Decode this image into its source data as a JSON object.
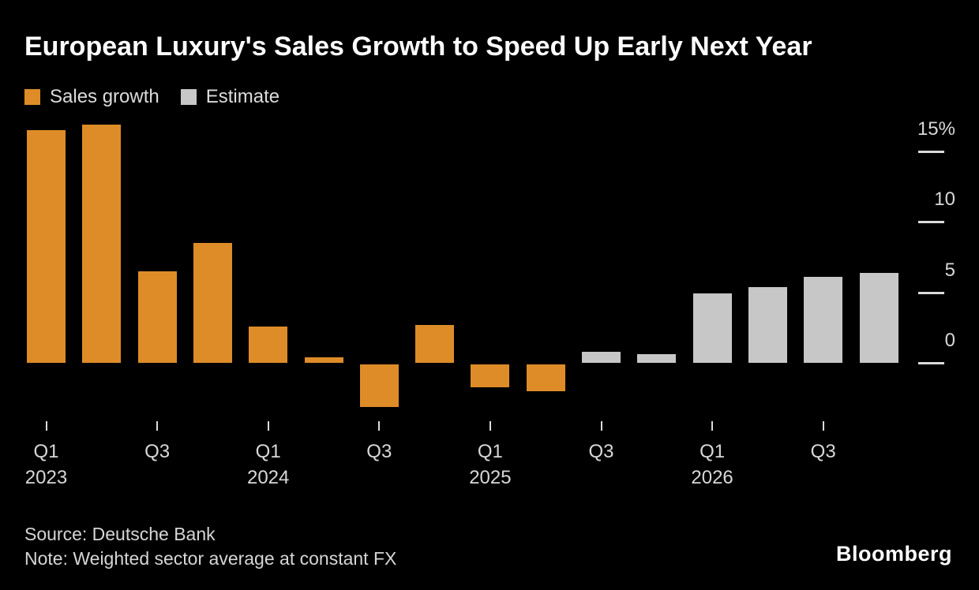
{
  "chart_data": {
    "type": "bar",
    "title": "European Luxury's Sales Growth to Speed Up Early Next Year",
    "categories": [
      "Q1 2023",
      "Q2 2023",
      "Q3 2023",
      "Q4 2023",
      "Q1 2024",
      "Q2 2024",
      "Q3 2024",
      "Q4 2024",
      "Q1 2025",
      "Q2 2025",
      "Q3 2025",
      "Q4 2025",
      "Q1 2026",
      "Q2 2026",
      "Q3 2026",
      "Q4 2026"
    ],
    "series": [
      {
        "name": "Sales growth",
        "color": "#DE8C28",
        "values": [
          16.5,
          16.9,
          6.5,
          8.5,
          2.6,
          0.4,
          -3.0,
          2.7,
          -1.6,
          -1.9,
          null,
          null,
          null,
          null,
          null,
          null
        ]
      },
      {
        "name": "Estimate",
        "color": "#C7C7C7",
        "values": [
          null,
          null,
          null,
          null,
          null,
          null,
          null,
          null,
          null,
          null,
          0.8,
          0.6,
          4.9,
          5.4,
          6.1,
          6.4
        ]
      }
    ],
    "xlabel": "",
    "ylabel": "%",
    "ylim": [
      -4,
      17.3
    ],
    "grid": false,
    "legend_position": "top-left",
    "axis_side": "right",
    "y_ticks": [
      {
        "label": "15%",
        "value": 15
      },
      {
        "label": "10",
        "value": 10
      },
      {
        "label": "5",
        "value": 5
      },
      {
        "label": "0",
        "value": 0
      }
    ],
    "x_ticks": [
      {
        "index": 0,
        "lines": [
          "Q1",
          "2023"
        ]
      },
      {
        "index": 2,
        "lines": [
          "Q3"
        ]
      },
      {
        "index": 4,
        "lines": [
          "Q1",
          "2024"
        ]
      },
      {
        "index": 6,
        "lines": [
          "Q3"
        ]
      },
      {
        "index": 8,
        "lines": [
          "Q1",
          "2025"
        ]
      },
      {
        "index": 10,
        "lines": [
          "Q3"
        ]
      },
      {
        "index": 12,
        "lines": [
          "Q1",
          "2026"
        ]
      },
      {
        "index": 14,
        "lines": [
          "Q3"
        ]
      }
    ]
  },
  "footer": {
    "source": "Source: Deutsche Bank",
    "note": "Note: Weighted sector average at constant FX",
    "brand": "Bloomberg"
  },
  "colors": {
    "background": "#000000",
    "title": "#FFFFFF",
    "label": "#D8D8D8",
    "tick": "#DBDBDB",
    "sales_growth": "#DE8C28",
    "estimate": "#C7C7C7"
  }
}
